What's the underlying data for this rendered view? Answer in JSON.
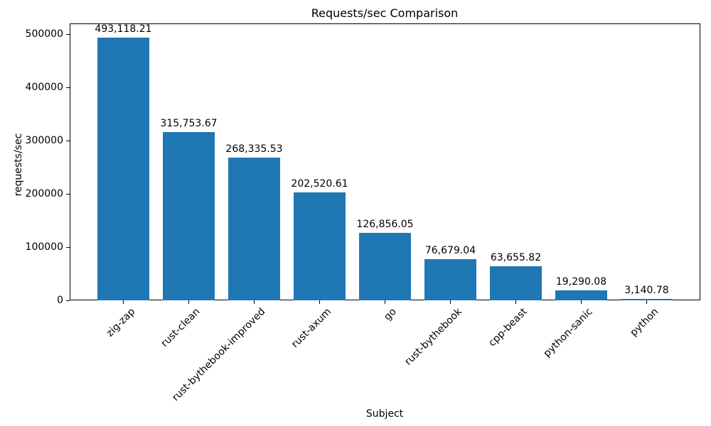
{
  "chart_data": {
    "type": "bar",
    "title": "Requests/sec Comparison",
    "xlabel": "Subject",
    "ylabel": "requests/sec",
    "categories": [
      "zig-zap",
      "rust-clean",
      "rust-bythebook-improved",
      "rust-axum",
      "go",
      "rust-bythebook",
      "cpp-beast",
      "python-sanic",
      "python"
    ],
    "values": [
      493118.21,
      315753.67,
      268335.53,
      202520.61,
      126856.05,
      76679.04,
      63655.82,
      19290.08,
      3140.78
    ],
    "bar_labels": [
      "493,118.21",
      "315,753.67",
      "268,335.53",
      "202,520.61",
      "126,856.05",
      "76,679.04",
      "63,655.82",
      "19,290.08",
      "3,140.78"
    ],
    "bar_color": "#1f77b4",
    "ylim": [
      0,
      520000
    ],
    "yticks": [
      0,
      100000,
      200000,
      300000,
      400000,
      500000
    ],
    "ytick_labels": [
      "0",
      "100000",
      "200000",
      "300000",
      "400000",
      "500000"
    ],
    "grid": false,
    "legend_position": "none"
  }
}
